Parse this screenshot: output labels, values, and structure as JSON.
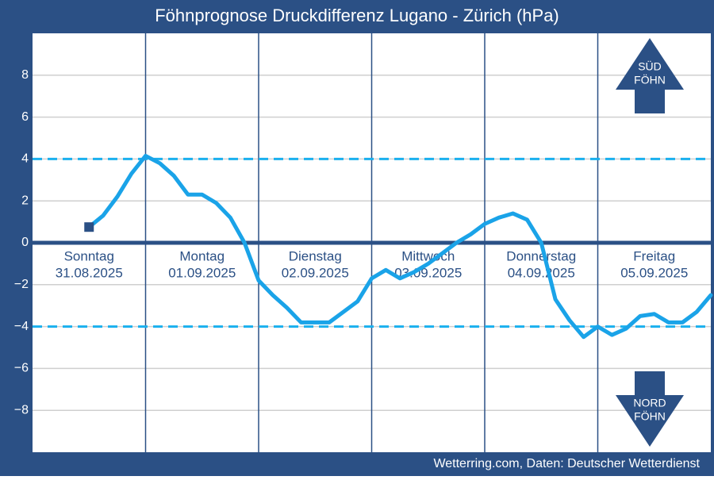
{
  "chart_data": {
    "type": "line",
    "title": "Föhnprognose Druckdifferenz Lugano - Zürich (hPa)",
    "source": "Wetterring.com, Daten: Deutscher Wetterdienst",
    "days": [
      [
        "Sonntag",
        "31.08.2025"
      ],
      [
        "Montag",
        "01.09.2025"
      ],
      [
        "Dienstag",
        "02.09.2025"
      ],
      [
        "Mittwoch",
        "03.09.2025"
      ],
      [
        "Donnerstag",
        "04.09.2025"
      ],
      [
        "Freitag",
        "05.09.2025"
      ]
    ],
    "annotations": {
      "south": [
        "SÜD",
        "FÖHN"
      ],
      "north": [
        "NORD",
        "FÖHN"
      ]
    },
    "x": [
      12,
      15,
      18,
      21,
      24,
      27,
      30,
      33,
      36,
      39,
      42,
      45,
      48,
      51,
      54,
      57,
      60,
      63,
      66,
      69,
      72,
      75,
      78,
      81,
      84,
      87,
      90,
      93,
      96,
      99,
      102,
      105,
      108,
      111,
      114,
      117,
      120,
      123,
      126,
      129,
      132,
      135,
      138,
      141,
      144
    ],
    "series": [
      {
        "color": "#1aa3e8",
        "values": [
          0.75,
          1.3,
          2.2,
          3.3,
          4.15,
          3.8,
          3.2,
          2.3,
          2.3,
          1.9,
          1.2,
          0.0,
          -1.8,
          -2.5,
          -3.1,
          -3.8,
          -3.8,
          -3.8,
          -3.3,
          -2.8,
          -1.7,
          -1.3,
          -1.7,
          -1.4,
          -1.0,
          -0.5,
          0.0,
          0.4,
          0.9,
          1.2,
          1.4,
          1.1,
          0.0,
          -2.7,
          -3.7,
          -4.5,
          -4.0,
          -4.4,
          -4.1,
          -3.5,
          -3.4,
          -3.8,
          -3.8,
          -3.3,
          -2.5
        ]
      }
    ],
    "xlim": [
      0,
      144
    ],
    "xticks": [
      24,
      48,
      72,
      96,
      120
    ],
    "ylim": [
      -10,
      10
    ],
    "yticks": [
      {
        "value": -8,
        "label": "−8"
      },
      {
        "value": -6,
        "label": "−6"
      },
      {
        "value": -4,
        "label": "−4"
      },
      {
        "value": -2,
        "label": "−2"
      },
      0,
      2,
      4,
      6,
      8
    ],
    "reference_lines": [
      4,
      -4
    ],
    "grid": true
  }
}
